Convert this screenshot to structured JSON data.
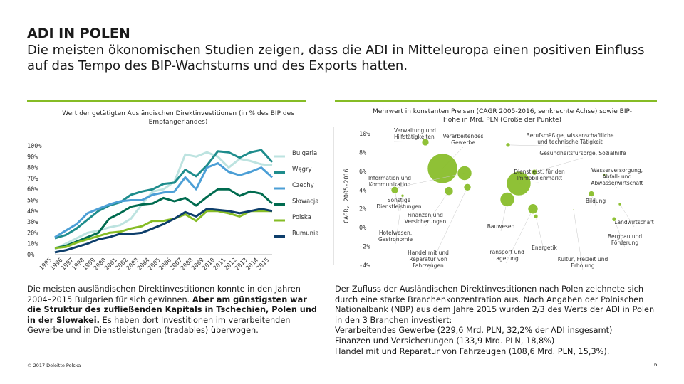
{
  "header": {
    "title": "ADI IN POLEN",
    "subtitle": "Die meisten ökonomischen Studien zeigen, dass die ADI in Mitteleuropa einen positiven Einfluss auf das Tempo des BIP-Wachstums und des Exports hatten."
  },
  "left_chart_title": "Wert der getätigten Ausländischen Direktinvestitionen (in % des BIP des Empfängerlandes)",
  "right_chart_title": "Mehrwert in konstanten Preisen (CAGR 2005-2016, senkrechte Achse) sowie BIP-Höhe in Mrd. PLN (Größe der Punkte)",
  "chart_data": [
    {
      "type": "line",
      "title": "Wert der getätigten Ausländischen Direktinvestitionen (in % des BIP des Empfängerlandes)",
      "x": [
        "1995",
        "1996",
        "1997",
        "1998",
        "1999",
        "2000",
        "2001",
        "2002",
        "2003",
        "2004",
        "2005",
        "2006",
        "2007",
        "2008",
        "2009",
        "2010",
        "2011",
        "2012",
        "2013",
        "2014",
        "2015"
      ],
      "y_ticks": [
        "0%",
        "10%",
        "20%",
        "30%",
        "40%",
        "50%",
        "60%",
        "70%",
        "80%",
        "90%",
        "100%"
      ],
      "ylim": [
        0,
        100
      ],
      "series": [
        {
          "name": "Bulgaria",
          "color": "#bde3e0",
          "values": [
            5,
            10,
            15,
            20,
            22,
            25,
            27,
            33,
            46,
            58,
            60,
            67,
            92,
            90,
            94,
            90,
            80,
            88,
            86,
            83,
            82
          ]
        },
        {
          "name": "Węgry",
          "color": "#1e8c8c",
          "values": [
            15,
            18,
            24,
            32,
            40,
            45,
            48,
            55,
            58,
            60,
            65,
            66,
            78,
            72,
            82,
            95,
            94,
            89,
            94,
            96,
            85
          ]
        },
        {
          "name": "Czechy",
          "color": "#4c9fd6",
          "values": [
            16,
            22,
            28,
            38,
            42,
            46,
            49,
            50,
            50,
            55,
            57,
            58,
            71,
            60,
            80,
            84,
            76,
            73,
            76,
            80,
            71
          ]
        },
        {
          "name": "Słowacja",
          "color": "#006b4f",
          "values": [
            6,
            8,
            12,
            16,
            20,
            33,
            38,
            44,
            46,
            47,
            52,
            49,
            52,
            45,
            53,
            60,
            60,
            54,
            58,
            56,
            47
          ]
        },
        {
          "name": "Polska",
          "color": "#86bc25",
          "values": [
            6,
            7,
            11,
            14,
            17,
            20,
            21,
            24,
            26,
            31,
            31,
            33,
            37,
            31,
            40,
            40,
            38,
            35,
            40,
            40,
            40
          ]
        },
        {
          "name": "Rumunia",
          "color": "#0d3e6b",
          "values": [
            2,
            4,
            7,
            10,
            14,
            16,
            19,
            19,
            20,
            24,
            28,
            33,
            39,
            35,
            42,
            41,
            40,
            38,
            40,
            42,
            40
          ]
        }
      ]
    },
    {
      "type": "scatter",
      "title": "Mehrwert in konstanten Preisen (CAGR 2005-2016, senkrechte Achse) sowie BIP-Höhe in Mrd. PLN (Größe der Punkte)",
      "ylabel": "CAGR, 2005-2016",
      "y_ticks": [
        "10%",
        "8%",
        "6%",
        "4%",
        "2%",
        "0%",
        "-2%",
        "-4%"
      ],
      "ylim": [
        -4,
        10
      ],
      "points": [
        {
          "label": "Verwaltung und Hilfstätigkeiten",
          "y": 9.1,
          "size": 4
        },
        {
          "label": "Verarbeitendes Gewerbe",
          "y": 6.3,
          "size": 21
        },
        {
          "label": "Berufsmäßige, wissenschaftliche und technische Tätigkeit",
          "y": 8.8,
          "size": 5
        },
        {
          "label": "Gesundheitsfürsorge, Sozialhilfe",
          "y": 5.9,
          "size": 7
        },
        {
          "label": "Information und Kommunikation",
          "y": 5.8,
          "size": 6
        },
        {
          "label": "Dienstleist. für den Immobilienmarkt",
          "y": 4.7,
          "size": 9
        },
        {
          "label": "Wasserversorgung, Abfall- und Abwasserwirtschaft",
          "y": 5.6,
          "size": 2
        },
        {
          "label": "Sonstige Dienstleistungen",
          "y": 4.0,
          "size": 3
        },
        {
          "label": "Bildung",
          "y": 3.6,
          "size": 5
        },
        {
          "label": "Finanzen und Versicherungen",
          "y": 3.9,
          "size": 7
        },
        {
          "label": "Landwirtschaft",
          "y": 2.5,
          "size": 3
        },
        {
          "label": "Bauwesen",
          "y": 3.0,
          "size": 7
        },
        {
          "label": "Hotelwesen, Gastronomie",
          "y": 3.4,
          "size": 2
        },
        {
          "label": "Handel mit und Reparatur von Fahrzeugen",
          "y": 4.3,
          "size": 15
        },
        {
          "label": "Transport und Lagerung",
          "y": 2.0,
          "size": 8
        },
        {
          "label": "Energetik",
          "y": 1.2,
          "size": 5
        },
        {
          "label": "Kultur, Freizeit und Erholung",
          "y": 1.9,
          "size": 1
        },
        {
          "label": "Bergbau und Förderung",
          "y": 0.9,
          "size": 3
        }
      ]
    }
  ],
  "text_left": {
    "plain1": "Die meisten ausländischen Direktinvestitionen konnte in den Jahren 2004–2015 Bulgarien für sich gewinnen. ",
    "bold": "Aber am günstigsten war die Struktur des zufließenden Kapitals in Tschechien, Polen und in der Slowakei.",
    "plain2": " Es haben dort Investitionen im verarbeitenden Gewerbe und in Dienstleistungen (tradables) überwogen."
  },
  "text_right": {
    "p1": "Der Zufluss der Ausländischen Direktinvestitionen nach Polen zeichnete sich durch eine starke Branchenkonzentration aus. Nach Angaben der Polnischen Nationalbank (NBP) aus dem Jahre 2015 wurden 2/3 des Werts der ADI in Polen in den 3 Branchen investiert:",
    "p2": "Verarbeitendes Gewerbe (229,6 Mrd. PLN, 32,2% der ADI insgesamt)",
    "p3": "Finanzen und Versicherungen (133,9 Mrd. PLN, 18,8%)",
    "p4": "Handel mit und Reparatur von Fahrzeugen (108,6 Mrd. PLN, 15,3%)."
  },
  "footer": {
    "copyright": "© 2017 Deloitte Polska",
    "page": "6"
  },
  "colors": {
    "accent": "#86bc25"
  }
}
